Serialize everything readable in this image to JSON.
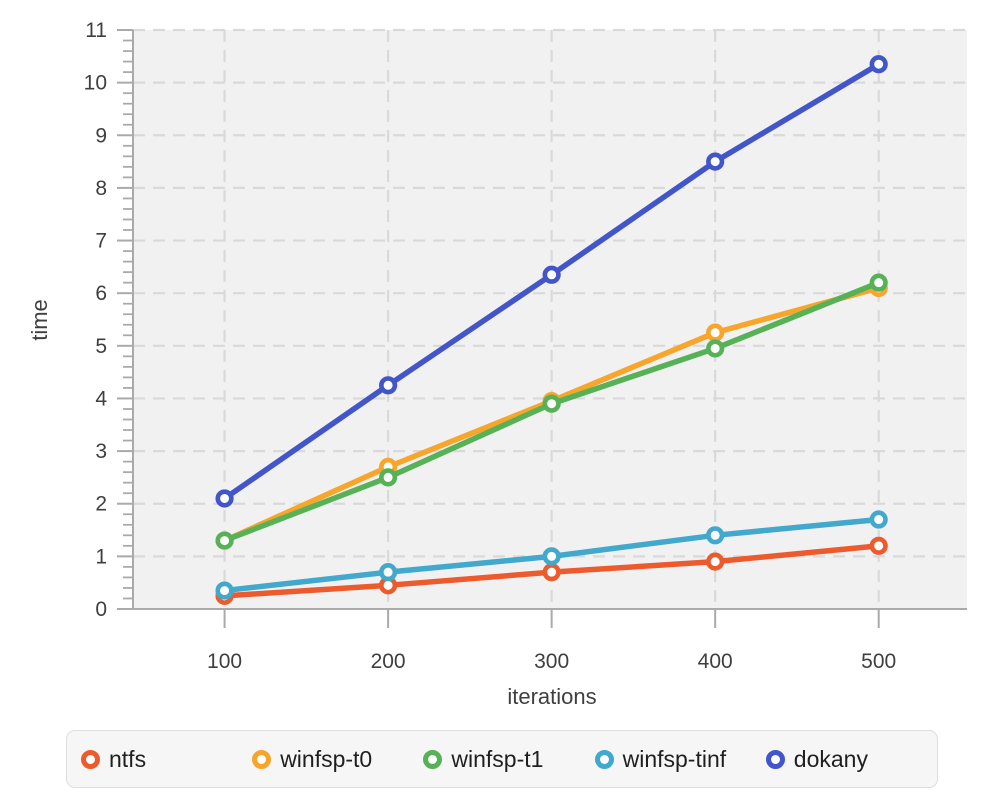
{
  "chart_data": {
    "type": "line",
    "title": "",
    "xlabel": "iterations",
    "ylabel": "time",
    "x": [
      100,
      200,
      300,
      400,
      500
    ],
    "series": [
      {
        "name": "ntfs",
        "color": "#ec5b2e",
        "values": [
          0.25,
          0.45,
          0.7,
          0.9,
          1.2
        ]
      },
      {
        "name": "winfsp-t0",
        "color": "#f7a52b",
        "values": [
          1.3,
          2.7,
          3.95,
          5.25,
          6.1
        ]
      },
      {
        "name": "winfsp-t1",
        "color": "#57b257",
        "values": [
          1.3,
          2.5,
          3.9,
          4.95,
          6.2
        ]
      },
      {
        "name": "winfsp-tinf",
        "color": "#42a8cc",
        "values": [
          0.35,
          0.7,
          1.0,
          1.4,
          1.7
        ]
      },
      {
        "name": "dokany",
        "color": "#4356c9",
        "values": [
          2.1,
          4.25,
          6.35,
          8.5,
          10.35
        ]
      }
    ],
    "xlim": [
      44,
      554
    ],
    "ylim": [
      0,
      11
    ],
    "xticks": [
      100,
      200,
      300,
      400,
      500
    ],
    "yticks": [
      0,
      1,
      2,
      3,
      4,
      5,
      6,
      7,
      8,
      9,
      10,
      11
    ],
    "y_minor_step": 0.2,
    "grid": true,
    "grid_style": "dashed",
    "marker": "open-circle",
    "legend_position": "bottom"
  },
  "style": {
    "panel_bg": "#f1f1f2",
    "grid_color": "#d9d9d9",
    "axis_color": "#aaaaaa",
    "tick_text_color": "#3f3f3f",
    "marker_fill": "#ffffff"
  }
}
